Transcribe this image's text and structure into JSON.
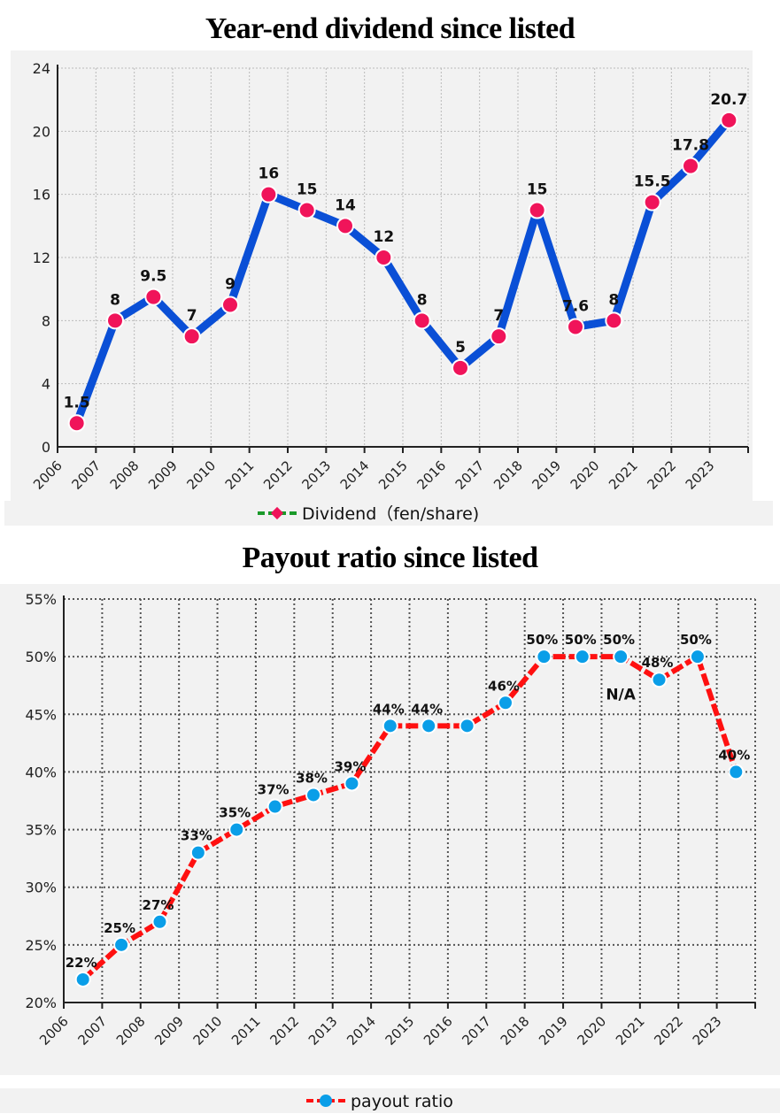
{
  "chart_data": [
    {
      "type": "line",
      "title": "Year-end dividend since listed",
      "categories": [
        "2006",
        "2007",
        "2008",
        "2009",
        "2010",
        "2011",
        "2012",
        "2013",
        "2014",
        "2015",
        "2016",
        "2017",
        "2018",
        "2019",
        "2020",
        "2021",
        "2022",
        "2023"
      ],
      "series": [
        {
          "name": "Dividend（fen/share)",
          "values": [
            1.5,
            8,
            9.5,
            7,
            9,
            16,
            15,
            14,
            12,
            8,
            5,
            7,
            15,
            7.6,
            8,
            15.5,
            17.8,
            20.7
          ]
        }
      ],
      "data_labels": [
        "1.5",
        "8",
        "9.5",
        "7",
        "9",
        "16",
        "15",
        "14",
        "12",
        "8",
        "5",
        "7",
        "15",
        "7.6",
        "8",
        "15.5",
        "17.8",
        "20.7"
      ],
      "yticks": [
        "0",
        "4",
        "8",
        "12",
        "16",
        "20",
        "24"
      ],
      "ylim": [
        0,
        24
      ],
      "grid": true,
      "legend": "bottom",
      "colors": {
        "line": "#0a4fd6",
        "marker": "#f0145a",
        "legend_line": "#1a9a2a",
        "background": "#f2f2f2"
      }
    },
    {
      "type": "line",
      "title": "Payout ratio since listed",
      "categories": [
        "2006",
        "2007",
        "2008",
        "2009",
        "2010",
        "2011",
        "2012",
        "2013",
        "2014",
        "2015",
        "2016",
        "2017",
        "2018",
        "2019",
        "2020",
        "2021",
        "2022",
        "2023"
      ],
      "series": [
        {
          "name": "payout ratio",
          "values": [
            22,
            25,
            27,
            33,
            35,
            37,
            38,
            39,
            44,
            44,
            44,
            46,
            50,
            50,
            50,
            48,
            50,
            40
          ]
        }
      ],
      "data_labels": [
        "22%",
        "25%",
        "27%",
        "33%",
        "35%",
        "37%",
        "38%",
        "39%",
        "44%",
        "44%",
        "",
        "46%",
        "50%",
        "50%",
        "50%",
        "48%",
        "50%",
        "40%"
      ],
      "annotation": "N/A",
      "yticks": [
        "20%",
        "25%",
        "30%",
        "35%",
        "40%",
        "45%",
        "50%",
        "55%"
      ],
      "ylim": [
        20,
        55
      ],
      "grid": true,
      "legend": "bottom",
      "colors": {
        "line": "#ff1010",
        "marker": "#0a9ee8",
        "background": "#f2f2f2"
      }
    }
  ]
}
